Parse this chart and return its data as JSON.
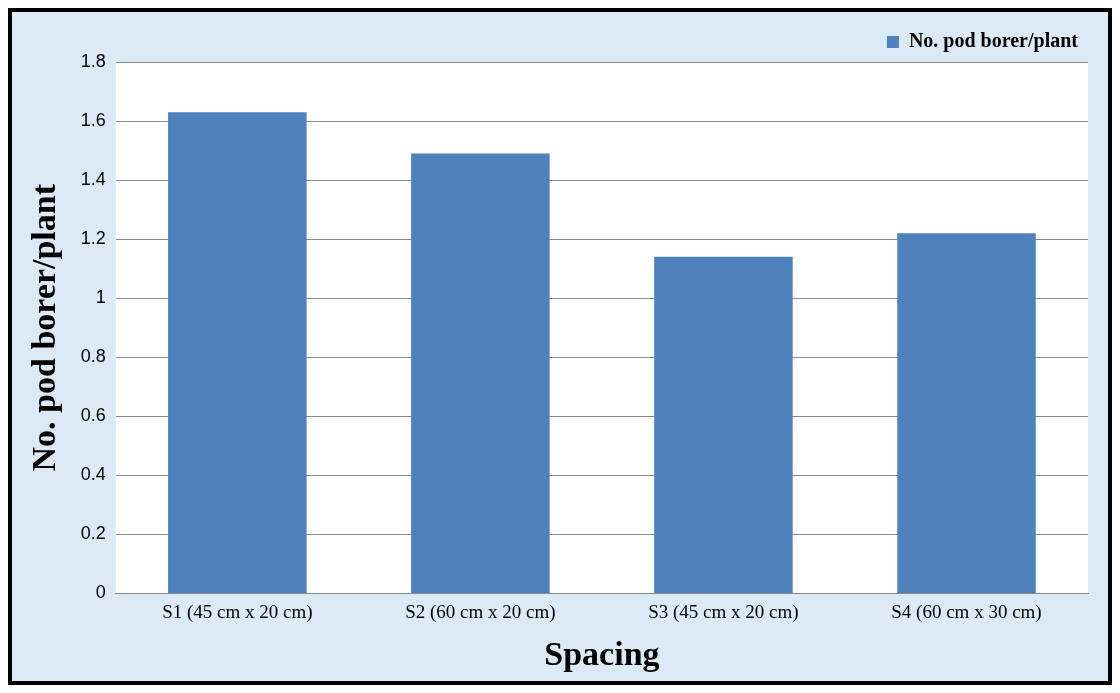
{
  "chart_data": {
    "type": "bar",
    "xlabel": "Spacing",
    "ylabel": "No. pod borer/plant",
    "categories": [
      "S1 (45 cm x 20 cm)",
      "S2 (60 cm x 20 cm)",
      "S3 (45 cm x 20 cm)",
      "S4 (60 cm x 30 cm)"
    ],
    "series": [
      {
        "name": "No. pod borer/plant",
        "color": "#4f81bd",
        "values": [
          1.63,
          1.49,
          1.14,
          1.22
        ]
      }
    ],
    "ylim": [
      0,
      1.8
    ],
    "yticks": [
      0,
      0.2,
      0.4,
      0.6,
      0.8,
      1,
      1.2,
      1.4,
      1.6,
      1.8
    ],
    "grid": "y",
    "legend": "top right"
  }
}
